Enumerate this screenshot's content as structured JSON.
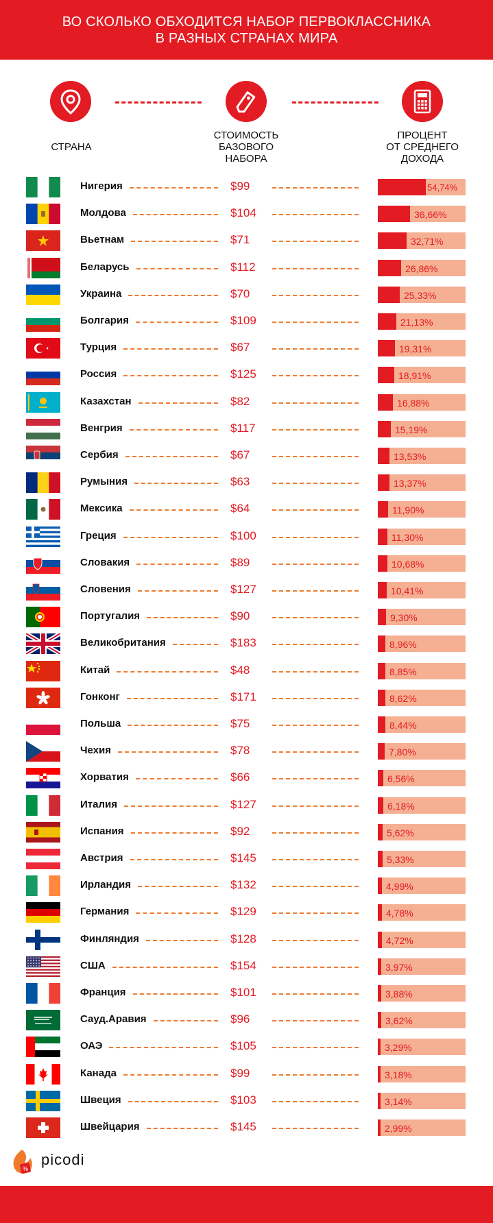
{
  "header": {
    "line1": "ВО СКОЛЬКО ОБХОДИТСЯ НАБОР ПЕРВОКЛАССНИКА",
    "line2": "В РАЗНЫХ СТРАНАХ МИРА"
  },
  "columns": {
    "country": "СТРАНА",
    "cost_lines": [
      "СТОИМОСТЬ",
      "БАЗОВОГО",
      "НАБОРА"
    ],
    "percent_lines": [
      "ПРОЦЕНТ",
      "ОТ СРЕДНЕГО",
      "ДОХОДА"
    ]
  },
  "icons": [
    "location-pin-icon",
    "price-tag-icon",
    "calculator-icon"
  ],
  "colors": {
    "accent": "#e31b23",
    "bar_background": "#f5b093",
    "dash": "#f07a2c"
  },
  "chart_data": {
    "type": "table",
    "title": "ВО СКОЛЬКО ОБХОДИТСЯ НАБОР ПЕРВОКЛАССНИКА В РАЗНЫХ СТРАНАХ МИРА",
    "columns": [
      "СТРАНА",
      "СТОИМОСТЬ БАЗОВОГО НАБОРА",
      "ПРОЦЕНТ ОТ СРЕДНЕГО ДОХОДА"
    ],
    "rows": [
      {
        "country": "Нигерия",
        "flag": "ng",
        "price": "$99",
        "price_value": 99,
        "percent": "54,74%",
        "percent_value": 54.74
      },
      {
        "country": "Молдова",
        "flag": "md",
        "price": "$104",
        "price_value": 104,
        "percent": "36,66%",
        "percent_value": 36.66
      },
      {
        "country": "Вьетнам",
        "flag": "vn",
        "price": "$71",
        "price_value": 71,
        "percent": "32,71%",
        "percent_value": 32.71
      },
      {
        "country": "Беларусь",
        "flag": "by",
        "price": "$112",
        "price_value": 112,
        "percent": "26,86%",
        "percent_value": 26.86
      },
      {
        "country": "Украина",
        "flag": "ua",
        "price": "$70",
        "price_value": 70,
        "percent": "25,33%",
        "percent_value": 25.33
      },
      {
        "country": "Болгария",
        "flag": "bg",
        "price": "$109",
        "price_value": 109,
        "percent": "21,13%",
        "percent_value": 21.13
      },
      {
        "country": "Турция",
        "flag": "tr",
        "price": "$67",
        "price_value": 67,
        "percent": "19,31%",
        "percent_value": 19.31
      },
      {
        "country": "Россия",
        "flag": "ru",
        "price": "$125",
        "price_value": 125,
        "percent": "18,91%",
        "percent_value": 18.91
      },
      {
        "country": "Казахстан",
        "flag": "kz",
        "price": "$82",
        "price_value": 82,
        "percent": "16,88%",
        "percent_value": 16.88
      },
      {
        "country": "Венгрия",
        "flag": "hu",
        "price": "$117",
        "price_value": 117,
        "percent": "15,19%",
        "percent_value": 15.19
      },
      {
        "country": "Сербия",
        "flag": "rs",
        "price": "$67",
        "price_value": 67,
        "percent": "13,53%",
        "percent_value": 13.53
      },
      {
        "country": "Румыния",
        "flag": "ro",
        "price": "$63",
        "price_value": 63,
        "percent": "13,37%",
        "percent_value": 13.37
      },
      {
        "country": "Мексика",
        "flag": "mx",
        "price": "$64",
        "price_value": 64,
        "percent": "11,90%",
        "percent_value": 11.9
      },
      {
        "country": "Греция",
        "flag": "gr",
        "price": "$100",
        "price_value": 100,
        "percent": "11,30%",
        "percent_value": 11.3
      },
      {
        "country": "Словакия",
        "flag": "sk",
        "price": "$89",
        "price_value": 89,
        "percent": "10,68%",
        "percent_value": 10.68
      },
      {
        "country": "Словения",
        "flag": "si",
        "price": "$127",
        "price_value": 127,
        "percent": "10,41%",
        "percent_value": 10.41
      },
      {
        "country": "Португалия",
        "flag": "pt",
        "price": "$90",
        "price_value": 90,
        "percent": "9,30%",
        "percent_value": 9.3
      },
      {
        "country": "Великобритания",
        "flag": "gb",
        "price": "$183",
        "price_value": 183,
        "percent": "8,96%",
        "percent_value": 8.96
      },
      {
        "country": "Китай",
        "flag": "cn",
        "price": "$48",
        "price_value": 48,
        "percent": "8,85%",
        "percent_value": 8.85
      },
      {
        "country": "Гонконг",
        "flag": "hk",
        "price": "$171",
        "price_value": 171,
        "percent": "8,62%",
        "percent_value": 8.62
      },
      {
        "country": "Польша",
        "flag": "pl",
        "price": "$75",
        "price_value": 75,
        "percent": "8,44%",
        "percent_value": 8.44
      },
      {
        "country": "Чехия",
        "flag": "cz",
        "price": "$78",
        "price_value": 78,
        "percent": "7,80%",
        "percent_value": 7.8
      },
      {
        "country": "Хорватия",
        "flag": "hr",
        "price": "$66",
        "price_value": 66,
        "percent": "6,56%",
        "percent_value": 6.56
      },
      {
        "country": "Италия",
        "flag": "it",
        "price": "$127",
        "price_value": 127,
        "percent": "6,18%",
        "percent_value": 6.18
      },
      {
        "country": "Испания",
        "flag": "es",
        "price": "$92",
        "price_value": 92,
        "percent": "5,62%",
        "percent_value": 5.62
      },
      {
        "country": "Австрия",
        "flag": "at",
        "price": "$145",
        "price_value": 145,
        "percent": "5,33%",
        "percent_value": 5.33
      },
      {
        "country": "Ирландия",
        "flag": "ie",
        "price": "$132",
        "price_value": 132,
        "percent": "4,99%",
        "percent_value": 4.99
      },
      {
        "country": "Германия",
        "flag": "de",
        "price": "$129",
        "price_value": 129,
        "percent": "4,78%",
        "percent_value": 4.78
      },
      {
        "country": "Финляндия",
        "flag": "fi",
        "price": "$128",
        "price_value": 128,
        "percent": "4,72%",
        "percent_value": 4.72
      },
      {
        "country": "США",
        "flag": "us",
        "price": "$154",
        "price_value": 154,
        "percent": "3,97%",
        "percent_value": 3.97
      },
      {
        "country": "Франция",
        "flag": "fr",
        "price": "$101",
        "price_value": 101,
        "percent": "3,88%",
        "percent_value": 3.88
      },
      {
        "country": "Сауд.Аравия",
        "flag": "sa",
        "price": "$96",
        "price_value": 96,
        "percent": "3,62%",
        "percent_value": 3.62
      },
      {
        "country": "ОАЭ",
        "flag": "ae",
        "price": "$105",
        "price_value": 105,
        "percent": "3,29%",
        "percent_value": 3.29
      },
      {
        "country": "Канада",
        "flag": "ca",
        "price": "$99",
        "price_value": 99,
        "percent": "3,18%",
        "percent_value": 3.18
      },
      {
        "country": "Швеция",
        "flag": "se",
        "price": "$103",
        "price_value": 103,
        "percent": "3,14%",
        "percent_value": 3.14
      },
      {
        "country": "Швейцария",
        "flag": "ch",
        "price": "$145",
        "price_value": 145,
        "percent": "2,99%",
        "percent_value": 2.99
      }
    ]
  },
  "logo": {
    "text": "picodi"
  }
}
